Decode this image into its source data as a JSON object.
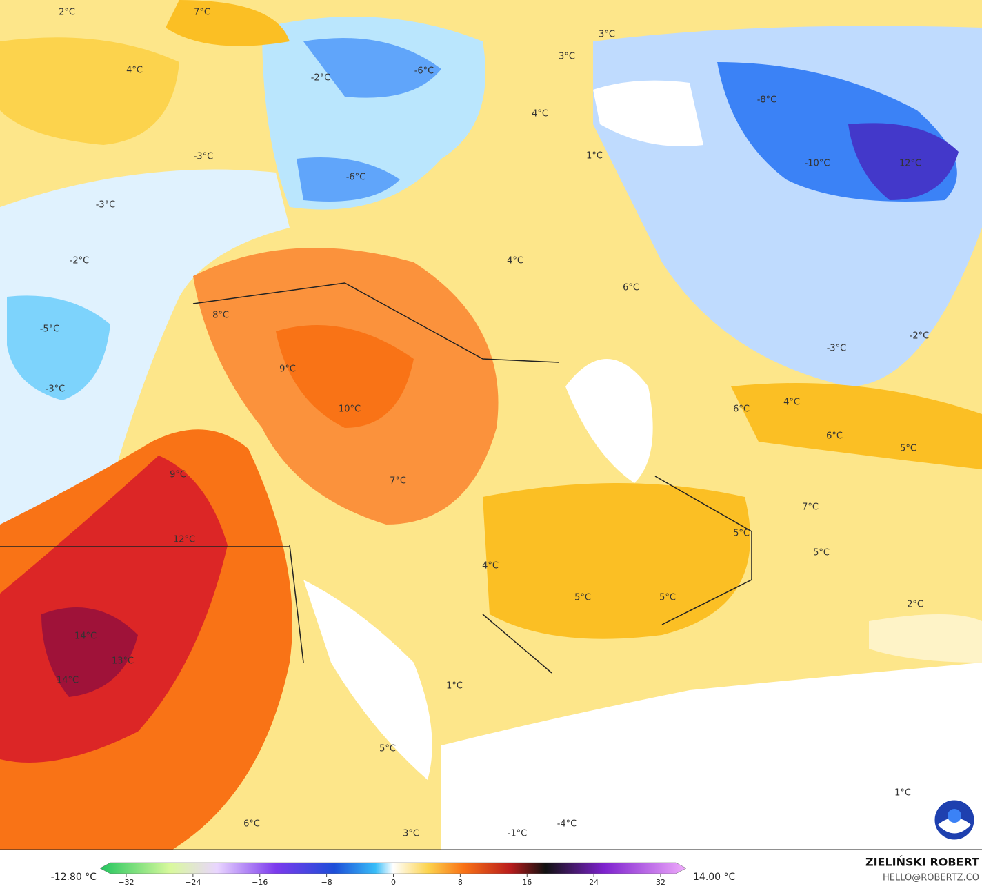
{
  "map": {
    "labels": [
      "2°C",
      "7°C",
      "4°C",
      "-2°C",
      "-6°C",
      "3°C",
      "3°C",
      "4°C",
      "-8°C",
      "-10°C",
      "12°C",
      "-3°C",
      "-6°C",
      "1°C",
      "-3°C",
      "-2°C",
      "4°C",
      "6°C",
      "8°C",
      "-5°C",
      "-2°C",
      "-3°C",
      "9°C",
      "-3°C",
      "4°C",
      "6°C",
      "10°C",
      "6°C",
      "5°C",
      "9°C",
      "7°C",
      "7°C",
      "5°C",
      "12°C",
      "5°C",
      "4°C",
      "5°C",
      "5°C",
      "2°C",
      "14°C",
      "13°C",
      "14°C",
      "1°C",
      "5°C",
      "1°C",
      "6°C",
      "-4°C",
      "3°C",
      "-1°C"
    ]
  },
  "colorbar": {
    "min_label": "-12.80 °C",
    "max_label": "14.00 °C",
    "ticks": [
      "−32",
      "−24",
      "−16",
      "−8",
      "0",
      "8",
      "16",
      "24",
      "32"
    ]
  },
  "footer": {
    "author": "ZIELIŃSKI ROBERT",
    "email": "HELLO@ROBERTZ.CO"
  }
}
